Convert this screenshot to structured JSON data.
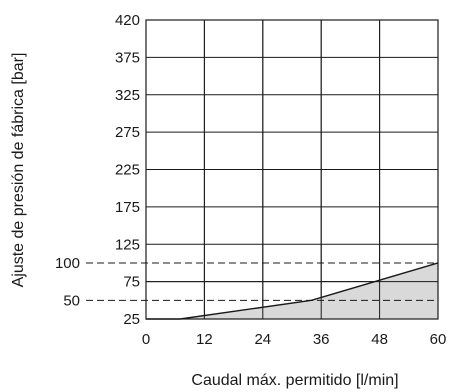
{
  "chart_data": {
    "type": "area",
    "title": "",
    "xlabel": "Caudal máx. permitido [l/min]",
    "ylabel": "Ajuste de presión de fábrica [bar]",
    "xlim": [
      0,
      60
    ],
    "ylim": [
      25,
      420
    ],
    "x_ticks": [
      "0",
      "12",
      "24",
      "36",
      "48",
      "60"
    ],
    "y_ticks_inside": [
      "25",
      "75",
      "125",
      "175",
      "225",
      "275",
      "325",
      "375",
      "420"
    ],
    "y_ticks_outside": [
      "50",
      "100"
    ],
    "x": [
      0,
      7,
      34,
      60
    ],
    "y": [
      25,
      25,
      50,
      100
    ],
    "reference_lines": [
      50,
      100
    ],
    "fill_color": "#d9d9d9",
    "line_color": "#1a1a1a",
    "grid": true
  }
}
